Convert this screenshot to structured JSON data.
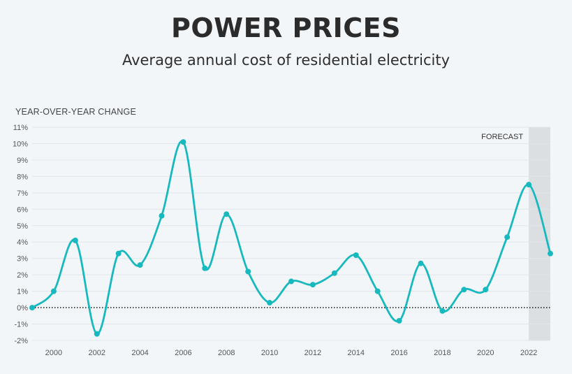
{
  "header": {
    "title": "POWER PRICES",
    "subtitle": "Average annual cost of residential electricity"
  },
  "colors": {
    "line": "#17b9bf",
    "grid": "#dfe5ea",
    "forecast_shade": "#dcdfe2",
    "zero_line": "#222222"
  },
  "chart_data": {
    "type": "line",
    "title": "POWER PRICES",
    "subtitle": "Average annual cost of residential electricity",
    "ylabel": "YEAR-OVER-YEAR CHANGE",
    "xlabel": "",
    "ylim": [
      -2,
      11
    ],
    "xlim": [
      1999,
      2023
    ],
    "y_ticks": [
      "-2%",
      "-1%",
      "0%",
      "1%",
      "2%",
      "3%",
      "4%",
      "5%",
      "6%",
      "7%",
      "8%",
      "9%",
      "10%",
      "11%"
    ],
    "x_ticks": [
      "2000",
      "2002",
      "2004",
      "2006",
      "2008",
      "2010",
      "2012",
      "2014",
      "2016",
      "2018",
      "2020",
      "2022"
    ],
    "forecast": {
      "label": "FORECAST",
      "from": 2022,
      "to": 2023
    },
    "zero_line": "dotted",
    "grid": true,
    "series": [
      {
        "x": [
          1999,
          2000,
          2001,
          2002,
          2003,
          2004,
          2005,
          2006,
          2007,
          2008,
          2009,
          2010,
          2011,
          2012,
          2013,
          2014,
          2015,
          2016,
          2017,
          2018,
          2019,
          2020,
          2021,
          2022,
          2023
        ],
        "values": [
          0.0,
          1.0,
          4.1,
          -1.6,
          3.3,
          2.6,
          5.6,
          10.1,
          2.4,
          5.7,
          2.2,
          0.3,
          1.6,
          1.4,
          2.1,
          3.2,
          1.0,
          -0.8,
          2.7,
          -0.2,
          1.1,
          1.1,
          4.3,
          7.5,
          3.3
        ]
      }
    ]
  }
}
